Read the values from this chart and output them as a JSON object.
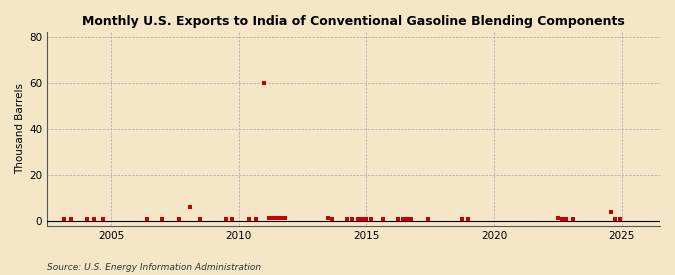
{
  "title": "Monthly U.S. Exports to India of Conventional Gasoline Blending Components",
  "ylabel": "Thousand Barrels",
  "source": "Source: U.S. Energy Information Administration",
  "background_color": "#f5e6c8",
  "plot_bg_color": "#f5e6c8",
  "marker_color": "#cc0000",
  "xlim": [
    2002.5,
    2026.5
  ],
  "ylim": [
    -2,
    82
  ],
  "yticks": [
    0,
    20,
    40,
    60,
    80
  ],
  "xticks": [
    2005,
    2010,
    2015,
    2020,
    2025
  ],
  "title_fontsize": 9.0,
  "data_points": [
    [
      2003.17,
      0.8
    ],
    [
      2003.42,
      0.8
    ],
    [
      2004.08,
      1.0
    ],
    [
      2004.33,
      0.8
    ],
    [
      2004.67,
      0.8
    ],
    [
      2006.42,
      0.8
    ],
    [
      2007.0,
      0.8
    ],
    [
      2007.67,
      0.8
    ],
    [
      2008.08,
      6.0
    ],
    [
      2008.5,
      0.8
    ],
    [
      2009.5,
      0.8
    ],
    [
      2009.75,
      0.8
    ],
    [
      2010.42,
      0.8
    ],
    [
      2010.67,
      0.8
    ],
    [
      2011.0,
      60.0
    ],
    [
      2011.17,
      1.5
    ],
    [
      2011.33,
      1.5
    ],
    [
      2011.5,
      1.5
    ],
    [
      2011.67,
      1.5
    ],
    [
      2011.83,
      1.5
    ],
    [
      2013.5,
      1.5
    ],
    [
      2013.67,
      0.8
    ],
    [
      2014.25,
      1.0
    ],
    [
      2014.42,
      0.8
    ],
    [
      2014.67,
      0.8
    ],
    [
      2014.83,
      0.8
    ],
    [
      2015.0,
      0.8
    ],
    [
      2015.17,
      0.8
    ],
    [
      2015.67,
      0.8
    ],
    [
      2016.25,
      0.8
    ],
    [
      2016.42,
      0.8
    ],
    [
      2016.58,
      0.8
    ],
    [
      2016.75,
      0.8
    ],
    [
      2017.42,
      0.8
    ],
    [
      2018.75,
      0.8
    ],
    [
      2019.0,
      0.8
    ],
    [
      2022.5,
      1.5
    ],
    [
      2022.67,
      1.0
    ],
    [
      2022.83,
      0.8
    ],
    [
      2023.08,
      0.8
    ],
    [
      2024.58,
      4.0
    ],
    [
      2024.75,
      0.8
    ],
    [
      2024.92,
      0.8
    ]
  ]
}
